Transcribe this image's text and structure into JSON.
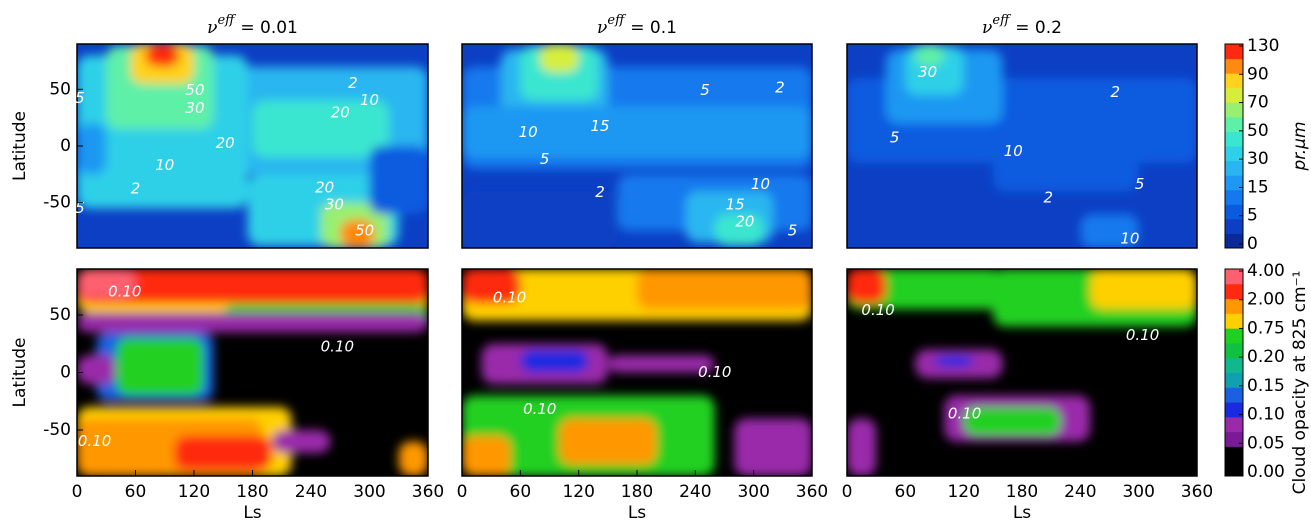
{
  "chart_data": [
    {
      "type": "contour",
      "colorbar": {
        "ticks": [
          0,
          5,
          15,
          30,
          50,
          70,
          90,
          130
        ],
        "label": "pr.μm",
        "colors": [
          "#0a2a9a",
          "#0c3fc4",
          "#0b5be0",
          "#1479ee",
          "#1e98f2",
          "#29b6f0",
          "#2fd0e8",
          "#3ae6d0",
          "#5ef0a8",
          "#98f070",
          "#d6ee3a",
          "#ffd21e",
          "#ff8a10",
          "#ff2a10"
        ]
      },
      "panels": [
        {
          "title": {
            "symbol": "ν",
            "superscript": "eff",
            "text": "= 0.01"
          },
          "xlim": [
            0,
            360
          ],
          "ylim": [
            -90,
            90
          ],
          "yticks": [
            50,
            0,
            -50
          ],
          "ylabel": "Latitude",
          "contour_labels": [
            5,
            50,
            30,
            2,
            10,
            20,
            20,
            10,
            2,
            20,
            30,
            50,
            5
          ]
        },
        {
          "title": {
            "symbol": "ν",
            "superscript": "eff",
            "text": "= 0.1"
          },
          "xlim": [
            0,
            360
          ],
          "ylim": [
            -90,
            90
          ],
          "contour_labels": [
            5,
            2,
            10,
            15,
            5,
            2,
            10,
            15,
            20,
            5
          ]
        },
        {
          "title": {
            "symbol": "ν",
            "superscript": "eff",
            "text": "= 0.2"
          },
          "xlim": [
            0,
            360
          ],
          "ylim": [
            -90,
            90
          ],
          "contour_labels": [
            30,
            2,
            5,
            10,
            5,
            2,
            10
          ]
        }
      ]
    },
    {
      "type": "contour",
      "colorbar": {
        "ticks": [
          {
            "value": 0,
            "label": "0.00"
          },
          {
            "value": 0.05,
            "label": "0.05"
          },
          {
            "value": 0.1,
            "label": "0.10"
          },
          {
            "value": 0.15,
            "label": "0.15"
          },
          {
            "value": 0.2,
            "label": "0.20"
          },
          {
            "value": 0.75,
            "label": "0.75"
          },
          {
            "value": 2,
            "label": "2.00"
          },
          {
            "value": 4,
            "label": "4.00"
          }
        ],
        "label": "Cloud opacity at 825 cm⁻¹",
        "colors": [
          "#000000",
          "#000000",
          "#7a1a96",
          "#9a2aaa",
          "#1a2ae0",
          "#1a60e0",
          "#10a0b0",
          "#10b890",
          "#10c040",
          "#20d020",
          "#ffd000",
          "#ff9800",
          "#ff2a10",
          "#ff6070"
        ]
      },
      "panels": [
        {
          "xlim": [
            0,
            360
          ],
          "ylim": [
            -90,
            90
          ],
          "xticks": [
            0,
            60,
            120,
            180,
            240,
            300,
            360
          ],
          "yticks": [
            50,
            0,
            -50
          ],
          "xlabel": "Ls",
          "ylabel": "Latitude",
          "contour_labels": [
            {
              "value": 0.1,
              "label": "0.10"
            },
            {
              "value": 0.1,
              "label": "0.10"
            },
            {
              "value": 0.1,
              "label": "0.10"
            }
          ]
        },
        {
          "xlim": [
            0,
            360
          ],
          "ylim": [
            -90,
            90
          ],
          "xticks": [
            0,
            60,
            120,
            180,
            240,
            300,
            360
          ],
          "xlabel": "Ls",
          "contour_labels": [
            {
              "value": 0.1,
              "label": "0.10"
            },
            {
              "value": 0.1,
              "label": "0.10"
            },
            {
              "value": 0.1,
              "label": "0.10"
            }
          ]
        },
        {
          "xlim": [
            0,
            360
          ],
          "ylim": [
            -90,
            90
          ],
          "xticks": [
            0,
            60,
            120,
            180,
            240,
            300,
            360
          ],
          "xlabel": "Ls",
          "contour_labels": [
            {
              "value": 0.1,
              "label": "0.10"
            },
            {
              "value": 0.1,
              "label": "0.10"
            },
            {
              "value": 0.1,
              "label": "0.10"
            }
          ]
        }
      ]
    }
  ]
}
